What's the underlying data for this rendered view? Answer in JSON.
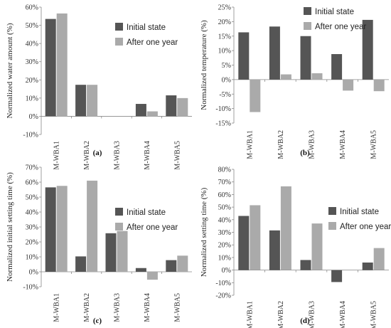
{
  "colors": {
    "initial": "#555555",
    "after": "#aaaaaa",
    "axis": "#888888"
  },
  "chart_data": [
    {
      "type": "bar",
      "panel_label": "(a)",
      "ylabel": "Normalized water amount (%)",
      "categories": [
        "M-WBA1",
        "M-WBA2",
        "M-WBA3",
        "M-WBA4",
        "M-WBA5"
      ],
      "series": [
        {
          "name": "Initial state",
          "values": [
            53.5,
            17.3,
            0,
            6.8,
            11.5
          ]
        },
        {
          "name": "After one year",
          "values": [
            56.5,
            17.3,
            0,
            2.7,
            10.0
          ]
        }
      ],
      "ylim": [
        -10,
        60
      ],
      "yticks": [
        -10,
        0,
        10,
        20,
        30,
        40,
        50,
        60
      ],
      "tick_format": "percent",
      "legend": "right"
    },
    {
      "type": "bar",
      "panel_label": "(b)",
      "ylabel": "Normalized temperature (%)",
      "categories": [
        "M-WBA1",
        "M-WBA2",
        "M-WBA3",
        "M-WBA4",
        "M-WBA5"
      ],
      "series": [
        {
          "name": "Initial state",
          "values": [
            16.3,
            18.3,
            15.0,
            8.8,
            20.6
          ]
        },
        {
          "name": "After one year",
          "values": [
            -11.2,
            1.8,
            2.2,
            -3.8,
            -4.0
          ]
        }
      ],
      "ylim": [
        -15,
        25
      ],
      "yticks": [
        -15,
        -10,
        -5,
        0,
        5,
        10,
        15,
        20,
        25
      ],
      "tick_format": "percent",
      "legend": "top-right"
    },
    {
      "type": "bar",
      "panel_label": "(c)",
      "ylabel": "Normalized initial setting time (%)",
      "categories": [
        "M-WBA1",
        "M-WBA2",
        "M-WBA3",
        "M-WBA4",
        "M-WBA5"
      ],
      "series": [
        {
          "name": "Initial state",
          "values": [
            56.5,
            10.3,
            25.8,
            2.5,
            7.8
          ]
        },
        {
          "name": "After one year",
          "values": [
            57.5,
            61.0,
            27.3,
            -5.3,
            10.8
          ]
        }
      ],
      "ylim": [
        -10,
        70
      ],
      "yticks": [
        -10,
        0,
        10,
        20,
        30,
        40,
        50,
        60,
        70
      ],
      "tick_format": "percent",
      "legend": "right"
    },
    {
      "type": "bar",
      "panel_label": "(d)",
      "ylabel": "Normalized setting time (%)",
      "categories": [
        "M-WBA1",
        "M-WBA2",
        "M-WBA3",
        "M-WBA4",
        "M-WBA5"
      ],
      "series": [
        {
          "name": "Initial state",
          "values": [
            43.0,
            31.5,
            8.0,
            -9.5,
            6.0
          ]
        },
        {
          "name": "After one year",
          "values": [
            51.5,
            66.5,
            37.0,
            0,
            17.5
          ]
        }
      ],
      "ylim": [
        -20,
        80
      ],
      "yticks": [
        -20,
        -10,
        0,
        10,
        20,
        30,
        40,
        50,
        60,
        70,
        80
      ],
      "tick_format": "percent",
      "legend": "right"
    }
  ]
}
